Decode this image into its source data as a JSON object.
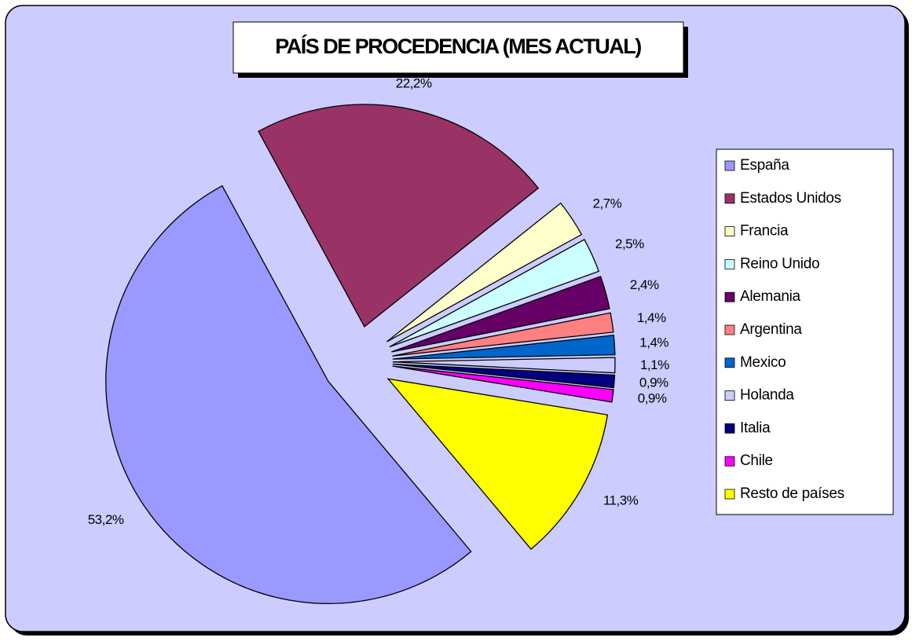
{
  "chart_data": {
    "type": "pie",
    "title": "PAÍS DE PROCEDENCIA (MES ACTUAL)",
    "categories": [
      "España",
      "Estados Unidos",
      "Francia",
      "Reino Unido",
      "Alemania",
      "Argentina",
      "Mexico",
      "Holanda",
      "Italia",
      "Chile",
      "Resto de países"
    ],
    "values": [
      53.2,
      22.2,
      2.7,
      2.5,
      2.4,
      1.4,
      1.4,
      1.1,
      0.9,
      0.9,
      11.3
    ],
    "value_labels": [
      "53,2%",
      "22,2%",
      "2,7%",
      "2,5%",
      "2,4%",
      "1,4%",
      "1,4%",
      "1,1%",
      "0,9%",
      "0,9%",
      "11,3%"
    ],
    "colors": [
      "#9999ff",
      "#993366",
      "#ffffcc",
      "#ccffff",
      "#660066",
      "#ff8080",
      "#0066cc",
      "#ccccff",
      "#000080",
      "#ff00ff",
      "#ffff00"
    ],
    "legend": "right"
  }
}
